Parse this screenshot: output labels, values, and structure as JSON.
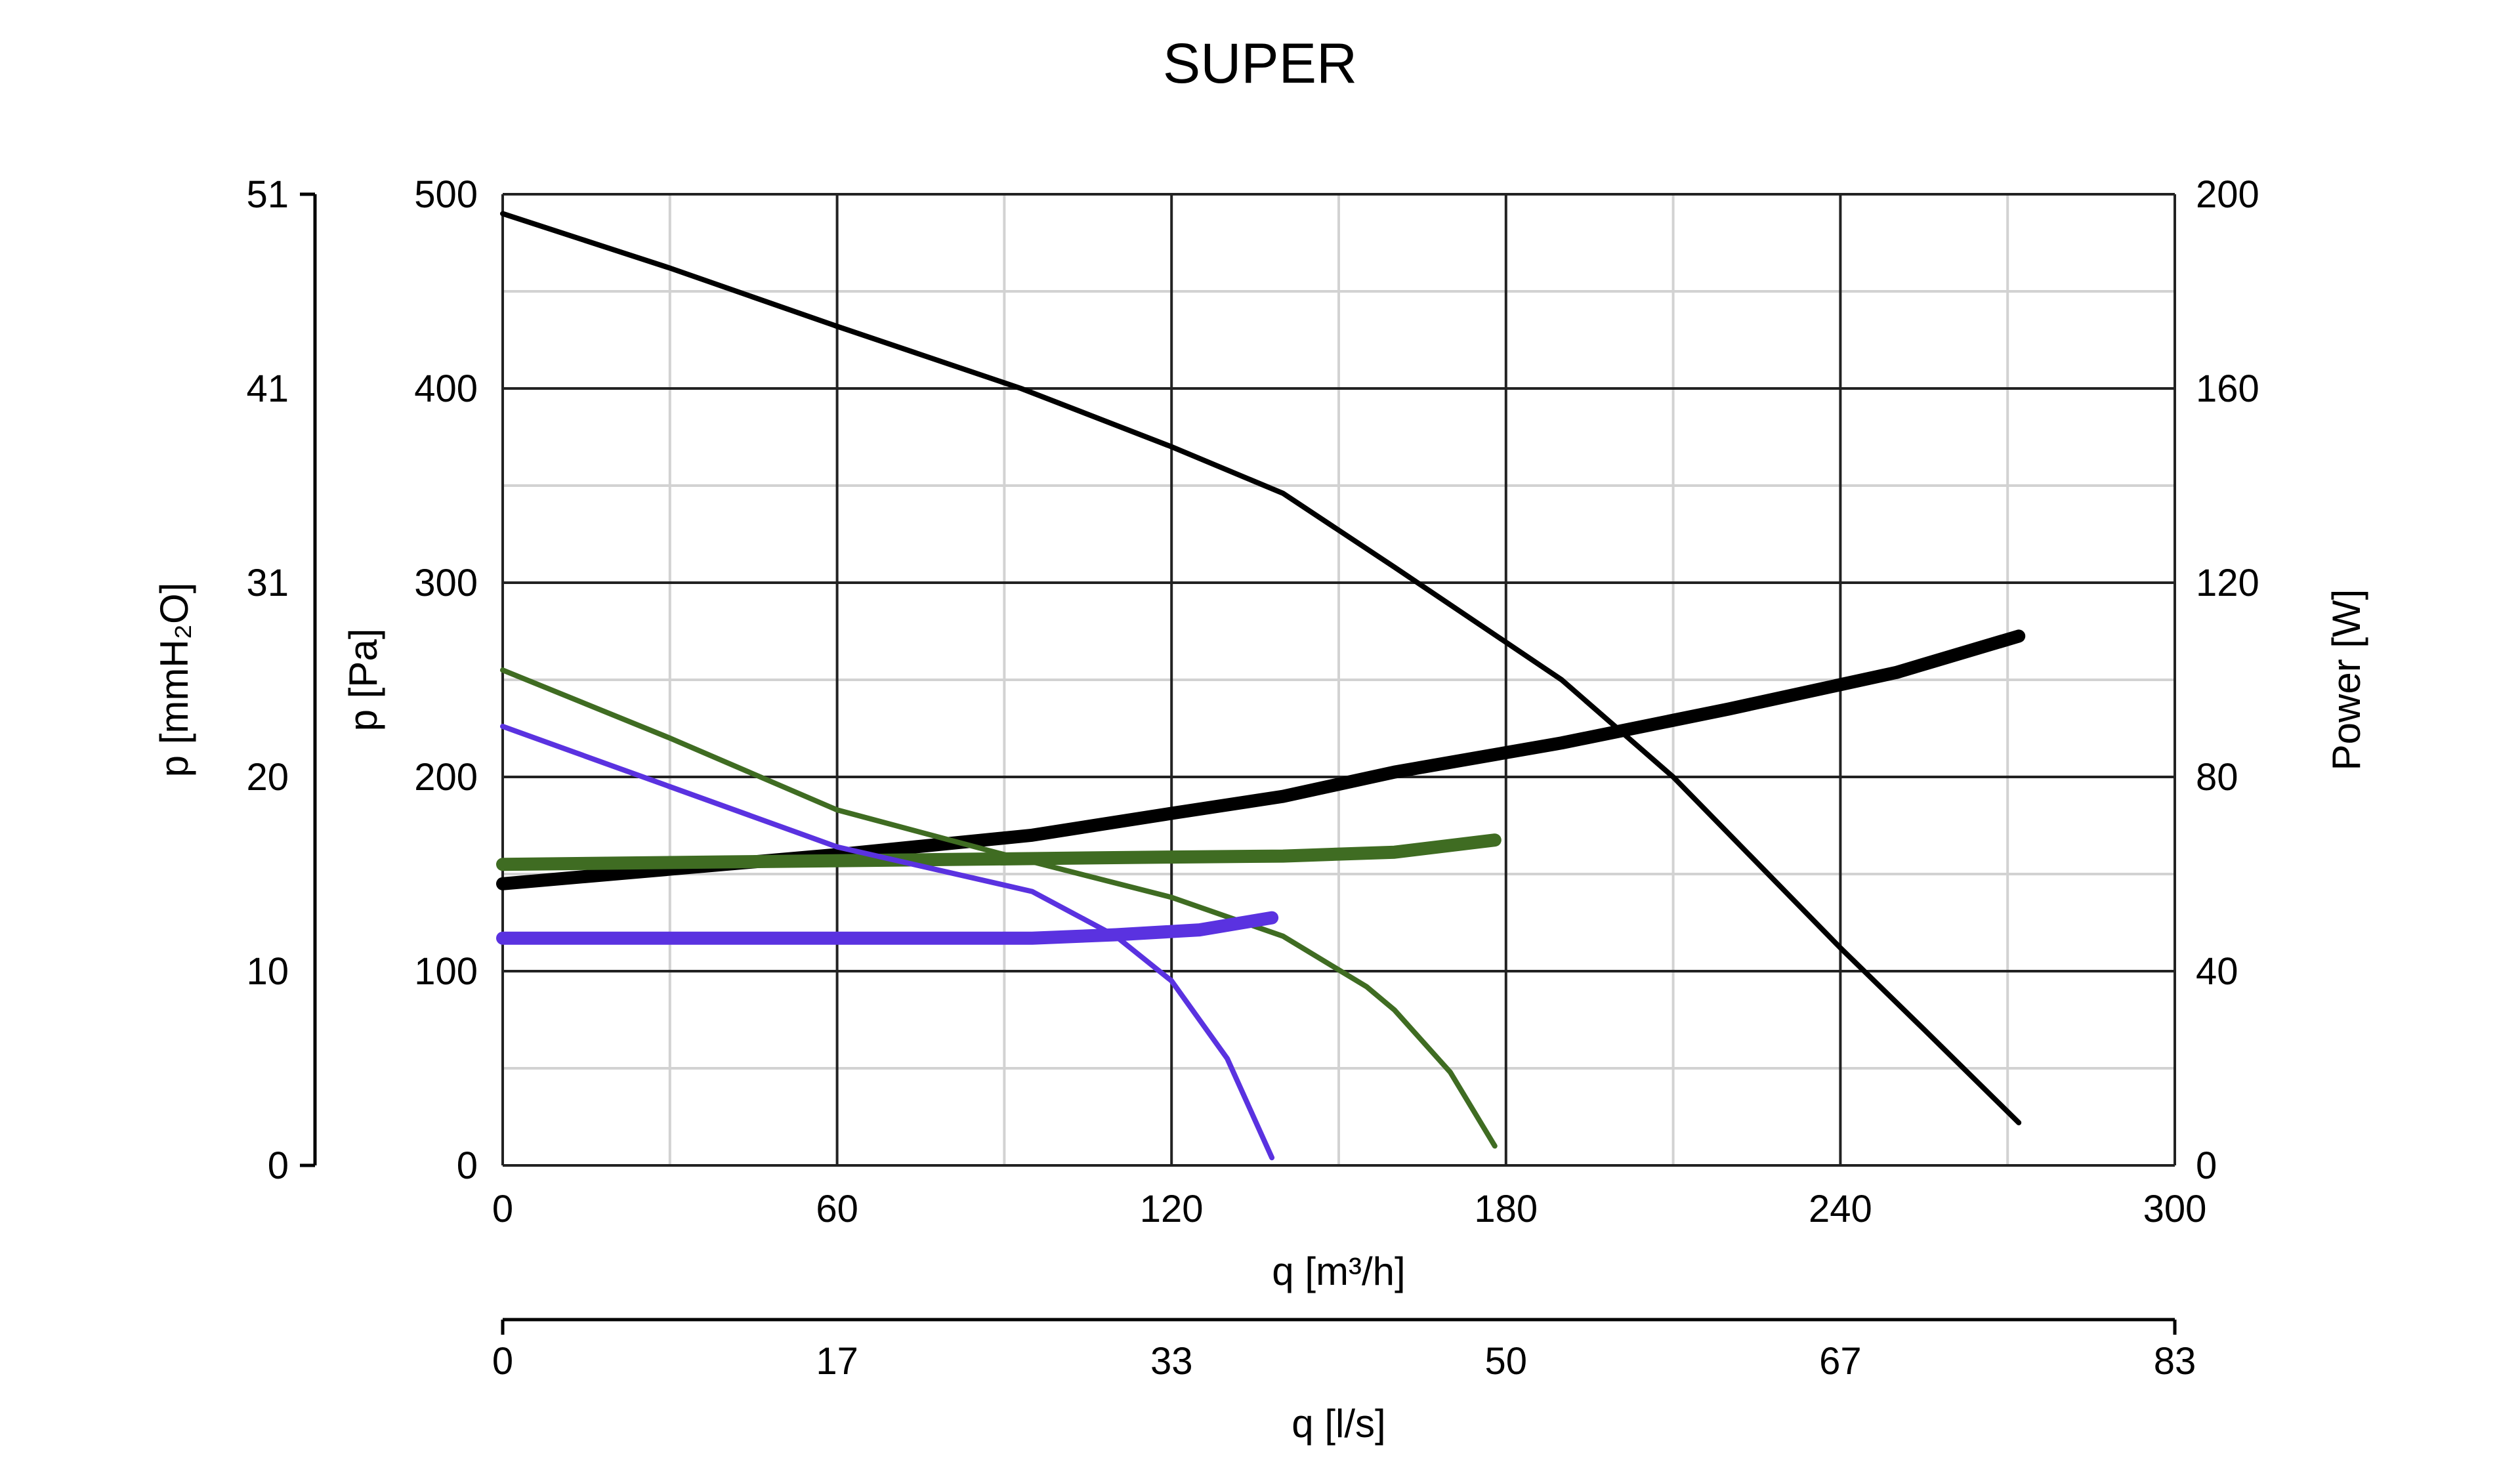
{
  "chart_data": {
    "type": "line",
    "title": "SUPER",
    "xlabel": "q [m³/h]",
    "xlim": [
      0,
      300
    ],
    "xticks": [
      "0",
      "60",
      "120",
      "180",
      "240",
      "300"
    ],
    "x2label": "q [l/s]",
    "x2ticks": [
      "0",
      "17",
      "33",
      "50",
      "67",
      "83"
    ],
    "ylabel": "p [Pa]",
    "ylim": [
      0,
      500
    ],
    "yticks": [
      "0",
      "100",
      "200",
      "300",
      "400",
      "500"
    ],
    "y2label": "p [mmH₂O]",
    "y2ticks": [
      "0",
      "10",
      "20",
      "31",
      "41",
      "51"
    ],
    "y3label": "Power [W]",
    "y3lim": [
      0,
      200
    ],
    "y3ticks": [
      "0",
      "40",
      "80",
      "120",
      "160",
      "200"
    ],
    "grid": true,
    "series": [
      {
        "axis": "pressure",
        "color": "#000000",
        "weight": "thin",
        "points": [
          [
            0,
            490
          ],
          [
            30,
            462
          ],
          [
            60,
            432
          ],
          [
            93,
            400
          ],
          [
            120,
            370
          ],
          [
            140,
            346
          ],
          [
            160,
            308
          ],
          [
            190,
            250
          ],
          [
            210,
            200
          ],
          [
            240,
            112
          ],
          [
            255,
            70
          ],
          [
            272,
            22
          ]
        ]
      },
      {
        "axis": "power",
        "color": "#000000",
        "weight": "thick",
        "points": [
          [
            0,
            58
          ],
          [
            30,
            61
          ],
          [
            60,
            64
          ],
          [
            95,
            68
          ],
          [
            120,
            72.5
          ],
          [
            140,
            76
          ],
          [
            160,
            81
          ],
          [
            190,
            87
          ],
          [
            220,
            94
          ],
          [
            250,
            101.5
          ],
          [
            272,
            109
          ]
        ]
      },
      {
        "axis": "pressure",
        "color": "#3f6c22",
        "weight": "thin",
        "points": [
          [
            0,
            255
          ],
          [
            30,
            220
          ],
          [
            60,
            183
          ],
          [
            90,
            160
          ],
          [
            120,
            138
          ],
          [
            140,
            118
          ],
          [
            155,
            92
          ],
          [
            160,
            80
          ],
          [
            170,
            48
          ],
          [
            178,
            10
          ]
        ]
      },
      {
        "axis": "power",
        "color": "#3f6c22",
        "weight": "thick",
        "points": [
          [
            0,
            62
          ],
          [
            40,
            62.5
          ],
          [
            80,
            63
          ],
          [
            120,
            63.5
          ],
          [
            140,
            63.7
          ],
          [
            160,
            64.5
          ],
          [
            178,
            67
          ]
        ]
      },
      {
        "axis": "pressure",
        "color": "#5a32e0",
        "weight": "thin",
        "points": [
          [
            0,
            226
          ],
          [
            30,
            195
          ],
          [
            60,
            164
          ],
          [
            95,
            141
          ],
          [
            110,
            118
          ],
          [
            120,
            95
          ],
          [
            130,
            55
          ],
          [
            138,
            4
          ]
        ]
      },
      {
        "axis": "power",
        "color": "#5a32e0",
        "weight": "thick",
        "points": [
          [
            0,
            46.8
          ],
          [
            50,
            46.8
          ],
          [
            95,
            46.8
          ],
          [
            110,
            47.5
          ],
          [
            125,
            48.5
          ],
          [
            138,
            51
          ]
        ]
      }
    ]
  }
}
